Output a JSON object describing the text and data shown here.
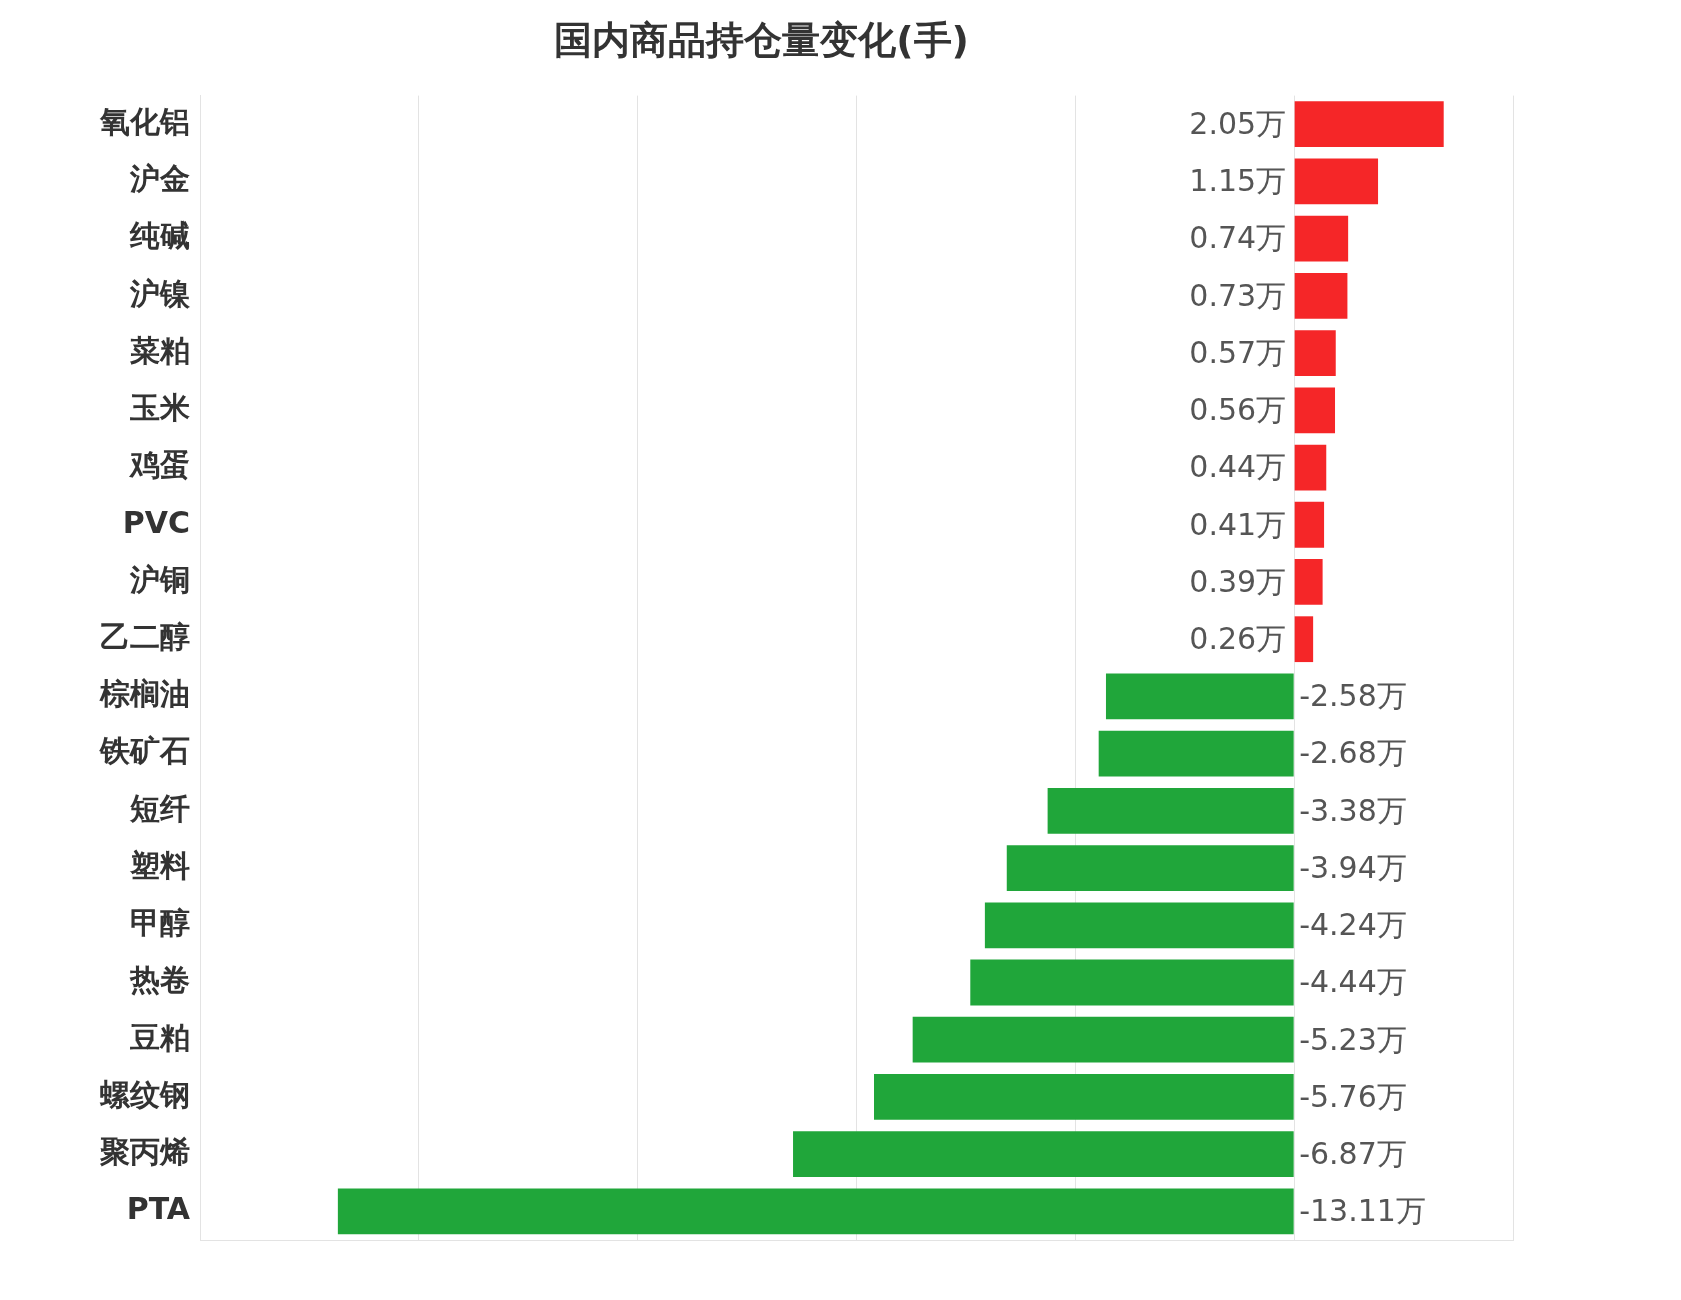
{
  "chart_data": {
    "type": "bar",
    "orientation": "horizontal",
    "title": "国内商品持仓量变化(手)",
    "categories": [
      "氧化铝",
      "沪金",
      "纯碱",
      "沪镍",
      "菜粕",
      "玉米",
      "鸡蛋",
      "PVC",
      "沪铜",
      "乙二醇",
      "棕榈油",
      "铁矿石",
      "短纤",
      "塑料",
      "甲醇",
      "热卷",
      "豆粕",
      "螺纹钢",
      "聚丙烯",
      "PTA"
    ],
    "values": [
      2.05,
      1.15,
      0.74,
      0.73,
      0.57,
      0.56,
      0.44,
      0.41,
      0.39,
      0.26,
      -2.58,
      -2.68,
      -3.38,
      -3.94,
      -4.24,
      -4.44,
      -5.23,
      -5.76,
      -6.87,
      -13.11
    ],
    "value_labels": [
      "2.05万",
      "1.15万",
      "0.74万",
      "0.73万",
      "0.57万",
      "0.56万",
      "0.44万",
      "0.41万",
      "0.39万",
      "0.26万",
      "-2.58万",
      "-2.68万",
      "-3.38万",
      "-3.94万",
      "-4.24万",
      "-4.44万",
      "-5.23万",
      "-5.76万",
      "-6.87万",
      "-13.11万"
    ],
    "colors": [
      "#f52628",
      "#f52628",
      "#f52628",
      "#f52628",
      "#f52628",
      "#f52628",
      "#f52628",
      "#f52628",
      "#f52628",
      "#f52628",
      "#20a63a",
      "#20a63a",
      "#20a63a",
      "#20a63a",
      "#20a63a",
      "#20a63a",
      "#20a63a",
      "#20a63a",
      "#20a63a",
      "#20a63a"
    ],
    "xlim": [
      -15,
      3
    ],
    "xticks": [
      {
        "value": -15,
        "label": null
      },
      {
        "value": -12,
        "label": null
      },
      {
        "value": -9,
        "label": null
      },
      {
        "value": -6,
        "label": null
      },
      {
        "value": -3,
        "label": null
      },
      {
        "value": 0,
        "label": null
      },
      {
        "value": 3,
        "label": null
      }
    ],
    "grid": "x",
    "tick_labels": "y",
    "legend": false
  }
}
